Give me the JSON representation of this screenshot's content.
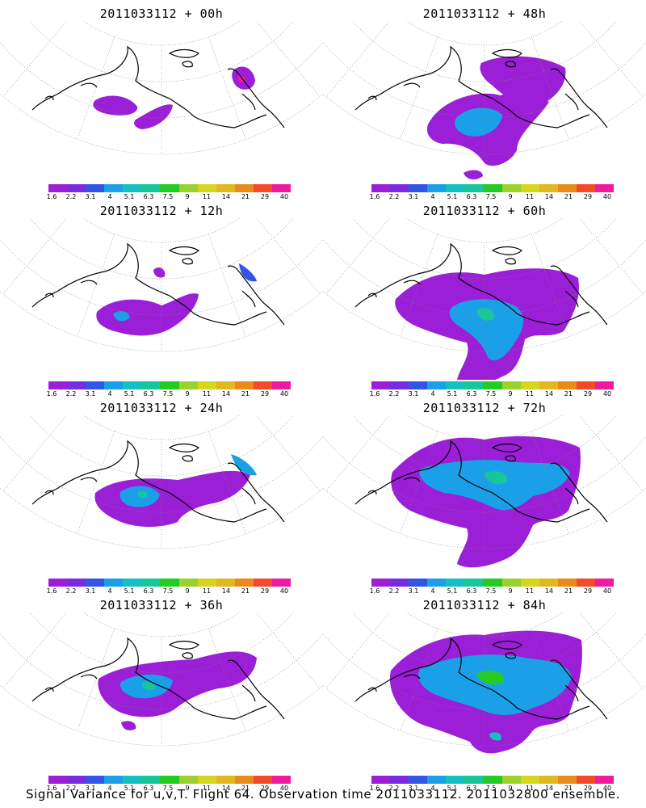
{
  "colorbar": {
    "labels": [
      "1.6",
      "2.2",
      "3.1",
      "4",
      "5.1",
      "6.3",
      "7.5",
      "9",
      "11",
      "14",
      "21",
      "29",
      "40"
    ],
    "colors": [
      "#9b1fd6",
      "#7a2be0",
      "#3355e6",
      "#1aa0e8",
      "#14c0c0",
      "#17c79a",
      "#22cc22",
      "#9ad12b",
      "#d6d61e",
      "#e0b81f",
      "#ea8a1a",
      "#f24a2a",
      "#ee1aa0"
    ]
  },
  "panels": [
    {
      "title": "2011033112 + 00h"
    },
    {
      "title": "2011033112 + 48h"
    },
    {
      "title": "2011033112 + 12h"
    },
    {
      "title": "2011033112 + 60h"
    },
    {
      "title": "2011033112 + 24h"
    },
    {
      "title": "2011033112 + 72h"
    },
    {
      "title": "2011033112 + 36h"
    },
    {
      "title": "2011033112 + 84h"
    }
  ],
  "caption": "Signal Variance for u,v,T. Flight 64. Observation time 2011033112. 2011032800 ensemble."
}
